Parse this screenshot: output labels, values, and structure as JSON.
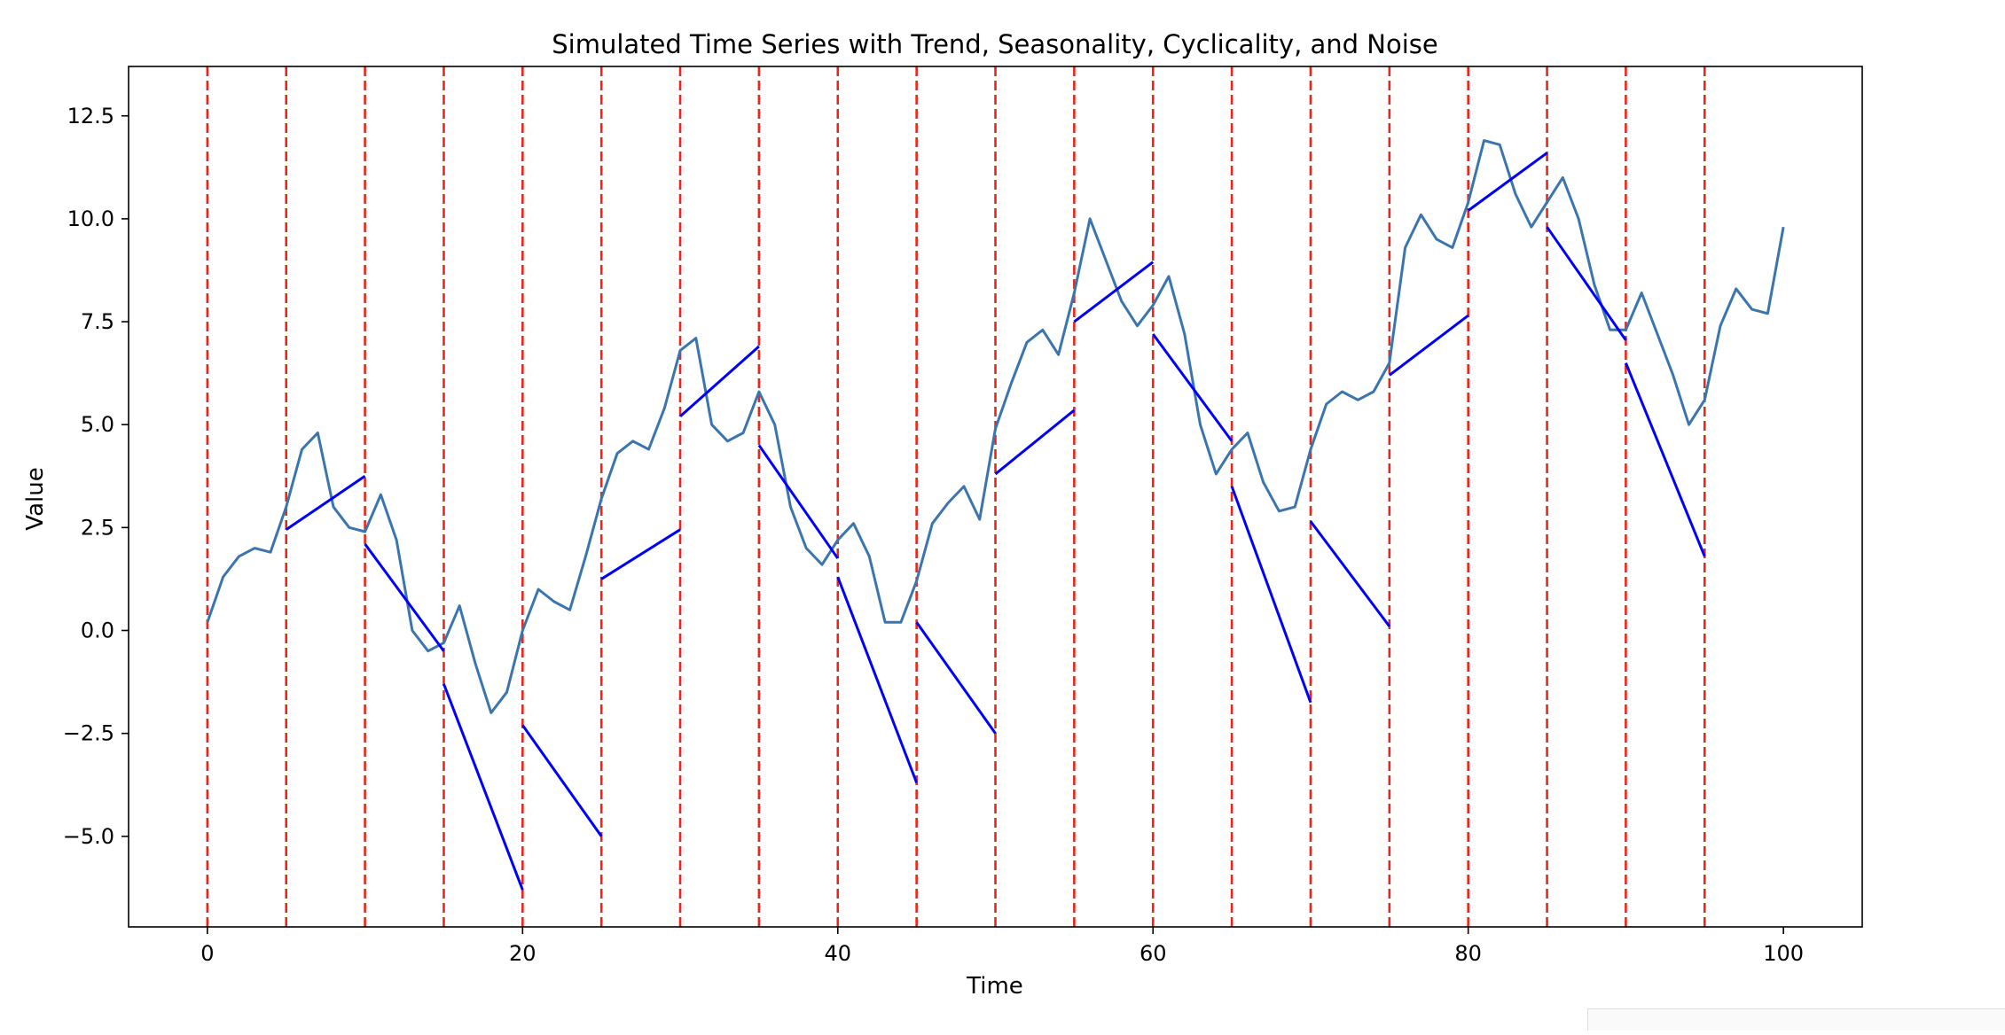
{
  "chart_data": {
    "type": "line",
    "title": "Simulated Time Series with Trend, Seasonality, Cyclicality, and Noise",
    "xlabel": "Time",
    "ylabel": "Value",
    "xlim": [
      -5,
      105
    ],
    "ylim": [
      -7.2,
      13.7
    ],
    "x_ticks": [
      0,
      20,
      40,
      60,
      80,
      100
    ],
    "x_tick_labels": [
      "0",
      "20",
      "40",
      "60",
      "80",
      "100"
    ],
    "y_ticks": [
      -5.0,
      -2.5,
      0.0,
      2.5,
      5.0,
      7.5,
      10.0,
      12.5
    ],
    "y_tick_labels": [
      "−5.0",
      "−2.5",
      "0.0",
      "2.5",
      "5.0",
      "7.5",
      "10.0",
      "12.5"
    ],
    "grid": false,
    "legend": "none",
    "colors": {
      "series": "#3b75af",
      "segments": "#0000ff",
      "changepoints": "#e8271c"
    },
    "changepoints": [
      0,
      5,
      10,
      15,
      20,
      25,
      30,
      35,
      40,
      45,
      50,
      55,
      60,
      65,
      70,
      75,
      80,
      85,
      90,
      95
    ],
    "series": [
      {
        "x": [
          0,
          1,
          2,
          3,
          4,
          5,
          6,
          7,
          8,
          9,
          10,
          11,
          12,
          13,
          14,
          15,
          16,
          17,
          18,
          19,
          20,
          21,
          22,
          23,
          24,
          25,
          26,
          27,
          28,
          29,
          30,
          31,
          32,
          33,
          34,
          35,
          36,
          37,
          38,
          39,
          40,
          41,
          42,
          43,
          44,
          45,
          46,
          47,
          48,
          49,
          50,
          51,
          52,
          53,
          54,
          55,
          56,
          57,
          58,
          59,
          60,
          61,
          62,
          63,
          64,
          65,
          66,
          67,
          68,
          69,
          70,
          71,
          72,
          73,
          74,
          75,
          76,
          77,
          78,
          79,
          80,
          81,
          82,
          83,
          84,
          85,
          86,
          87,
          88,
          89,
          90,
          91,
          92,
          93,
          94,
          95,
          96,
          97,
          98,
          99,
          100
        ],
        "values": [
          0.2,
          1.3,
          1.8,
          2.0,
          1.9,
          3.0,
          4.4,
          4.8,
          3.0,
          2.5,
          2.4,
          3.3,
          2.2,
          0.0,
          -0.5,
          -0.3,
          0.6,
          -0.8,
          -2.0,
          -1.5,
          0.0,
          1.0,
          0.7,
          0.5,
          1.8,
          3.2,
          4.3,
          4.6,
          4.4,
          5.4,
          6.8,
          7.1,
          5.0,
          4.6,
          4.8,
          5.8,
          5.0,
          3.0,
          2.0,
          1.6,
          2.2,
          2.6,
          1.8,
          0.2,
          0.2,
          1.2,
          2.6,
          3.1,
          3.5,
          2.7,
          4.9,
          6.0,
          7.0,
          7.3,
          6.7,
          8.2,
          10.0,
          9.0,
          8.0,
          7.4,
          7.9,
          8.6,
          7.2,
          5.0,
          3.8,
          4.4,
          4.8,
          3.6,
          2.9,
          3.0,
          4.4,
          5.5,
          5.8,
          5.6,
          5.8,
          6.5,
          9.3,
          10.1,
          9.5,
          9.3,
          10.4,
          11.9,
          11.8,
          10.6,
          9.8,
          10.4,
          11.0,
          10.0,
          8.4,
          7.3,
          7.3,
          8.2,
          7.2,
          6.2,
          5.0,
          5.6,
          7.4,
          8.3,
          7.8,
          7.7,
          9.8
        ]
      }
    ],
    "segments": [
      {
        "x": [
          5,
          10
        ],
        "y": [
          2.45,
          3.75
        ]
      },
      {
        "x": [
          10,
          15
        ],
        "y": [
          2.1,
          -0.5
        ]
      },
      {
        "x": [
          15,
          20
        ],
        "y": [
          -1.3,
          -6.3
        ]
      },
      {
        "x": [
          20,
          25
        ],
        "y": [
          -2.3,
          -5.0
        ]
      },
      {
        "x": [
          25,
          30
        ],
        "y": [
          1.25,
          2.45
        ]
      },
      {
        "x": [
          30,
          35
        ],
        "y": [
          5.2,
          6.9
        ]
      },
      {
        "x": [
          35,
          40
        ],
        "y": [
          4.5,
          1.75
        ]
      },
      {
        "x": [
          40,
          45
        ],
        "y": [
          1.3,
          -3.7
        ]
      },
      {
        "x": [
          45,
          50
        ],
        "y": [
          0.2,
          -2.5
        ]
      },
      {
        "x": [
          50,
          55
        ],
        "y": [
          3.8,
          5.35
        ]
      },
      {
        "x": [
          55,
          60
        ],
        "y": [
          7.5,
          8.95
        ]
      },
      {
        "x": [
          60,
          65
        ],
        "y": [
          7.2,
          4.6
        ]
      },
      {
        "x": [
          65,
          70
        ],
        "y": [
          3.5,
          -1.75
        ]
      },
      {
        "x": [
          70,
          75
        ],
        "y": [
          2.65,
          0.1
        ]
      },
      {
        "x": [
          75,
          80
        ],
        "y": [
          6.2,
          7.65
        ]
      },
      {
        "x": [
          80,
          85
        ],
        "y": [
          10.2,
          11.6
        ]
      },
      {
        "x": [
          85,
          90
        ],
        "y": [
          9.8,
          7.05
        ]
      },
      {
        "x": [
          90,
          95
        ],
        "y": [
          6.5,
          1.8
        ]
      }
    ]
  }
}
